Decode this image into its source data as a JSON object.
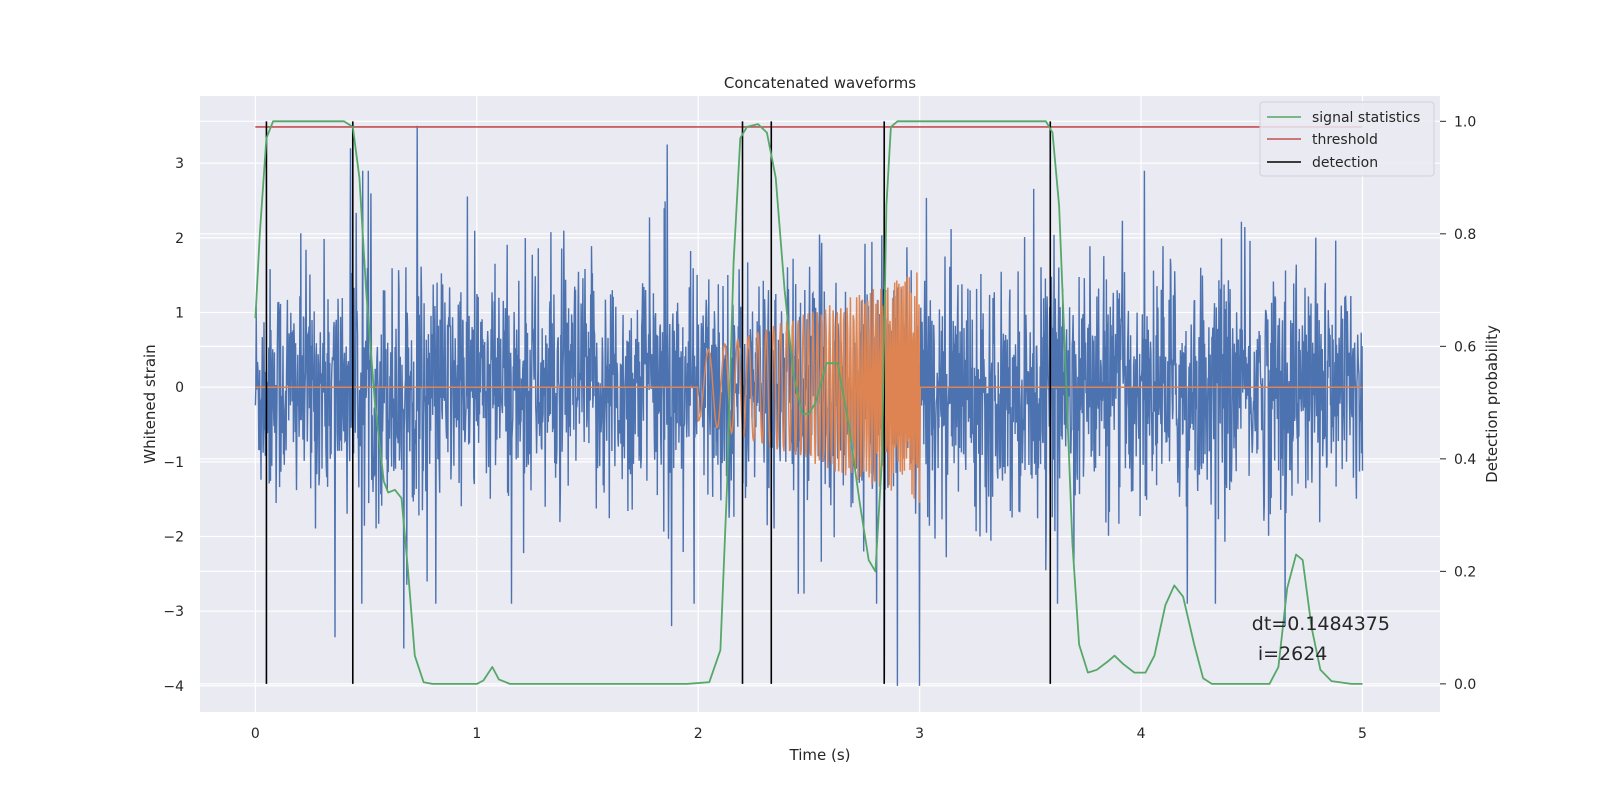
{
  "chart_data": {
    "type": "line",
    "title": "Concatenated waveforms",
    "xlabel": "Time (s)",
    "ylabel": "Whitened strain",
    "y2label": "Detection probability",
    "xlim": [
      -0.25,
      5.35
    ],
    "ylim": [
      -4.35,
      3.9
    ],
    "y2lim": [
      -0.05,
      1.045
    ],
    "xticks": [
      0,
      1,
      2,
      3,
      4,
      5
    ],
    "yticks": [
      -4,
      -3,
      -2,
      -1,
      0,
      1,
      2,
      3
    ],
    "y2ticks": [
      0.0,
      0.2,
      0.4,
      0.6,
      0.8,
      1.0
    ],
    "y2ticklabels": [
      "0.0",
      "0.2",
      "0.4",
      "0.6",
      "0.8",
      "1.0"
    ],
    "grid": true,
    "legend_position": "top-right",
    "colors": {
      "background": "#eaeaf2",
      "strain": "#4c72b0",
      "injection": "#dd8452",
      "statistics": "#55a868",
      "threshold": "#c44e52",
      "detection": "#000000"
    },
    "series": [
      {
        "name": "",
        "kind": "noise",
        "axis": "left",
        "x_range": [
          0,
          5
        ],
        "sample_count": 2560,
        "spikes": [
          {
            "x": 0.43,
            "y": 3.2
          },
          {
            "x": 0.73,
            "y": 3.5
          },
          {
            "x": 0.36,
            "y": -3.35
          },
          {
            "x": 0.67,
            "y": -3.5
          },
          {
            "x": 1.86,
            "y": 3.25
          },
          {
            "x": 2.84,
            "y": -3.9
          },
          {
            "x": 2.9,
            "y": -4.0
          },
          {
            "x": 3.0,
            "y": -4.0
          },
          {
            "x": 1.88,
            "y": -3.2
          },
          {
            "x": 4.65,
            "y": -3.2
          }
        ]
      },
      {
        "name": "",
        "kind": "chirp",
        "axis": "left",
        "x_range": [
          0,
          5
        ],
        "chirp_start": 2.0,
        "chirp_end": 3.0,
        "amplitude_start": 0.45,
        "amplitude_end": 1.55
      },
      {
        "name": "signal statistics",
        "axis": "right",
        "points": [
          [
            0.0,
            0.65
          ],
          [
            0.02,
            0.8
          ],
          [
            0.05,
            0.97
          ],
          [
            0.08,
            1.0
          ],
          [
            0.4,
            1.0
          ],
          [
            0.44,
            0.99
          ],
          [
            0.47,
            0.9
          ],
          [
            0.5,
            0.7
          ],
          [
            0.54,
            0.5
          ],
          [
            0.58,
            0.36
          ],
          [
            0.6,
            0.34
          ],
          [
            0.63,
            0.345
          ],
          [
            0.66,
            0.33
          ],
          [
            0.69,
            0.2
          ],
          [
            0.72,
            0.05
          ],
          [
            0.76,
            0.003
          ],
          [
            0.8,
            0.0
          ],
          [
            1.0,
            0.0
          ],
          [
            1.03,
            0.006
          ],
          [
            1.07,
            0.03
          ],
          [
            1.1,
            0.008
          ],
          [
            1.15,
            0.0
          ],
          [
            1.95,
            0.0
          ],
          [
            2.05,
            0.003
          ],
          [
            2.1,
            0.06
          ],
          [
            2.13,
            0.35
          ],
          [
            2.16,
            0.75
          ],
          [
            2.19,
            0.97
          ],
          [
            2.22,
            0.99
          ],
          [
            2.27,
            0.995
          ],
          [
            2.31,
            0.98
          ],
          [
            2.35,
            0.9
          ],
          [
            2.39,
            0.7
          ],
          [
            2.43,
            0.55
          ],
          [
            2.47,
            0.48
          ],
          [
            2.5,
            0.48
          ],
          [
            2.53,
            0.5
          ],
          [
            2.58,
            0.57
          ],
          [
            2.63,
            0.57
          ],
          [
            2.68,
            0.46
          ],
          [
            2.73,
            0.32
          ],
          [
            2.77,
            0.22
          ],
          [
            2.8,
            0.2
          ],
          [
            2.83,
            0.4
          ],
          [
            2.85,
            0.85
          ],
          [
            2.87,
            0.99
          ],
          [
            2.9,
            1.0
          ],
          [
            3.57,
            1.0
          ],
          [
            3.6,
            0.98
          ],
          [
            3.63,
            0.85
          ],
          [
            3.66,
            0.55
          ],
          [
            3.69,
            0.25
          ],
          [
            3.72,
            0.07
          ],
          [
            3.76,
            0.02
          ],
          [
            3.8,
            0.025
          ],
          [
            3.85,
            0.04
          ],
          [
            3.88,
            0.05
          ],
          [
            3.92,
            0.035
          ],
          [
            3.97,
            0.02
          ],
          [
            4.02,
            0.02
          ],
          [
            4.06,
            0.05
          ],
          [
            4.11,
            0.14
          ],
          [
            4.15,
            0.175
          ],
          [
            4.19,
            0.155
          ],
          [
            4.24,
            0.07
          ],
          [
            4.28,
            0.01
          ],
          [
            4.32,
            0.0
          ],
          [
            4.58,
            0.0
          ],
          [
            4.62,
            0.03
          ],
          [
            4.66,
            0.17
          ],
          [
            4.7,
            0.23
          ],
          [
            4.73,
            0.22
          ],
          [
            4.77,
            0.1
          ],
          [
            4.81,
            0.025
          ],
          [
            4.86,
            0.005
          ],
          [
            4.95,
            0.0
          ],
          [
            5.0,
            0.0
          ]
        ]
      },
      {
        "name": "threshold",
        "axis": "right",
        "points": [
          [
            0.0,
            0.99
          ],
          [
            5.0,
            0.99
          ]
        ]
      }
    ],
    "detections": {
      "name": "detection",
      "x": [
        0.05,
        0.44,
        2.2,
        2.33,
        2.84,
        3.59
      ],
      "y_range": [
        0.0,
        1.0
      ]
    },
    "annotation": {
      "line1": "dt=0.1484375",
      "line2": " i=2624",
      "x": 4.5,
      "y": -3.25
    }
  }
}
